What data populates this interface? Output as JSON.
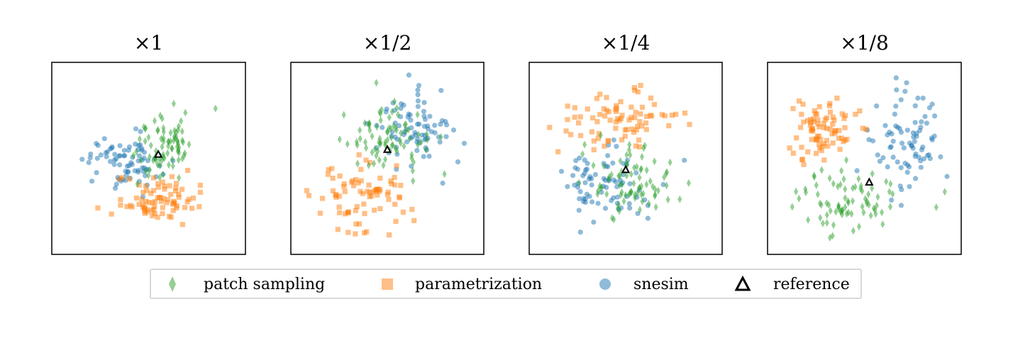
{
  "chart_data": {
    "type": "scatter",
    "panels": [
      {
        "title": "×1",
        "xlim": [
          -1,
          1
        ],
        "ylim": [
          -1,
          1
        ],
        "reference": [
          0.1,
          0.04
        ],
        "clusters": {
          "patch sampling": {
            "center": [
              0.2,
              0.12
            ],
            "spread": [
              0.33,
              0.3
            ],
            "n": 80
          },
          "parametrization": {
            "center": [
              0.05,
              -0.42
            ],
            "spread": [
              0.38,
              0.2
            ],
            "n": 80
          },
          "snesim": {
            "center": [
              -0.25,
              -0.03
            ],
            "spread": [
              0.35,
              0.27
            ],
            "n": 80
          }
        }
      },
      {
        "title": "×1/2",
        "xlim": [
          -1,
          1
        ],
        "ylim": [
          -1,
          1
        ],
        "reference": [
          0.0,
          0.09
        ],
        "clusters": {
          "patch sampling": {
            "center": [
              -0.02,
              0.18
            ],
            "spread": [
              0.38,
              0.3
            ],
            "n": 80
          },
          "parametrization": {
            "center": [
              -0.28,
              -0.42
            ],
            "spread": [
              0.45,
              0.32
            ],
            "n": 80
          },
          "snesim": {
            "center": [
              0.25,
              0.28
            ],
            "spread": [
              0.38,
              0.36
            ],
            "n": 80
          }
        }
      },
      {
        "title": "×1/4",
        "xlim": [
          -1,
          1
        ],
        "ylim": [
          -1,
          1
        ],
        "reference": [
          0.0,
          -0.12
        ],
        "clusters": {
          "patch sampling": {
            "center": [
              0.05,
              -0.25
            ],
            "spread": [
              0.35,
              0.32
            ],
            "n": 80
          },
          "parametrization": {
            "center": [
              -0.05,
              0.42
            ],
            "spread": [
              0.55,
              0.25
            ],
            "n": 80
          },
          "snesim": {
            "center": [
              -0.2,
              -0.25
            ],
            "spread": [
              0.48,
              0.38
            ],
            "n": 80
          }
        }
      },
      {
        "title": "×1/8",
        "xlim": [
          -1,
          1
        ],
        "ylim": [
          -1,
          1
        ],
        "reference": [
          0.05,
          -0.25
        ],
        "clusters": {
          "patch sampling": {
            "center": [
              -0.2,
              -0.45
            ],
            "spread": [
              0.6,
              0.35
            ],
            "n": 80
          },
          "parametrization": {
            "center": [
              -0.45,
              0.35
            ],
            "spread": [
              0.35,
              0.32
            ],
            "n": 80
          },
          "snesim": {
            "center": [
              0.45,
              0.15
            ],
            "spread": [
              0.35,
              0.5
            ],
            "n": 80
          }
        }
      }
    ],
    "series": [
      {
        "name": "patch sampling",
        "marker": "diamond",
        "color": "#2ca02c"
      },
      {
        "name": "parametrization",
        "marker": "square",
        "color": "#ff7f0e"
      },
      {
        "name": "snesim",
        "marker": "circle",
        "color": "#1f77b4"
      },
      {
        "name": "reference",
        "marker": "triangle",
        "color": "#000000"
      }
    ],
    "axes_ticks": "none",
    "grid": false,
    "legend": {
      "placement": "bottom-center",
      "ncol": 4
    }
  }
}
